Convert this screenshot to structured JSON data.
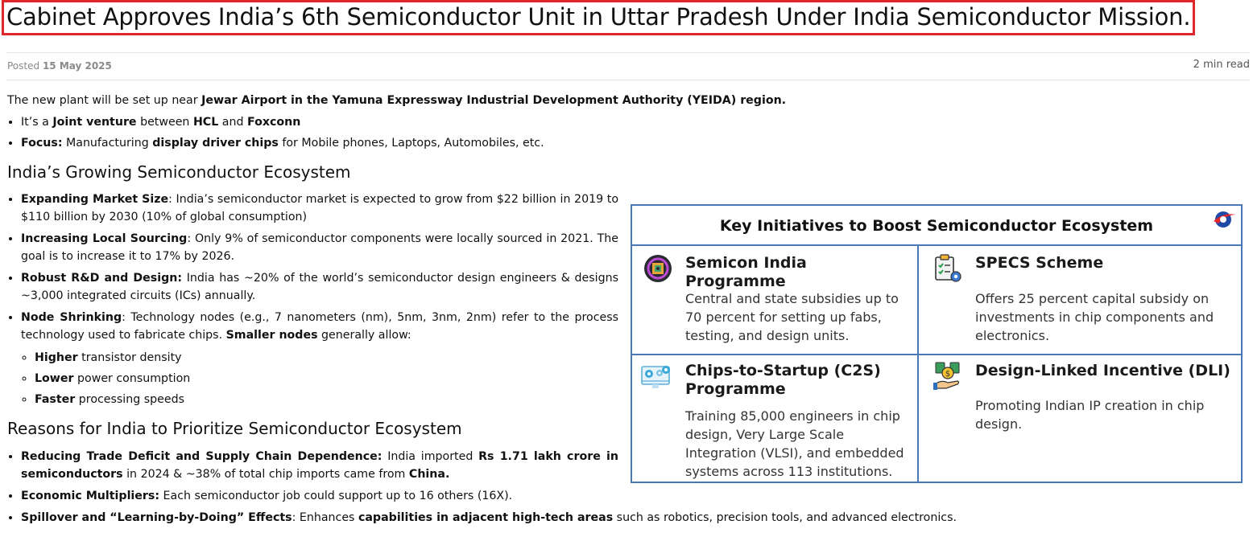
{
  "article": {
    "title": "Cabinet Approves India’s 6th Semiconductor Unit in Uttar Pradesh Under India Semiconductor Mission.",
    "posted_label": "Posted",
    "posted_date": "15 May 2025",
    "read_time": "2 min read"
  },
  "intro": {
    "prefix": "The new plant will be set up near ",
    "bold": "Jewar Airport in the Yamuna Expressway Industrial Development Authority (YEIDA) region."
  },
  "top_points": [
    {
      "t1": "It’s a ",
      "b1": "Joint venture",
      "t2": " between ",
      "b2": "HCL",
      "t3": " and ",
      "b3": "Foxconn"
    },
    {
      "b1": "Focus:",
      "t2": " Manufacturing ",
      "b2": "display driver chips",
      "t3": " for Mobile phones, Laptops, Automobiles, etc."
    }
  ],
  "eco": {
    "heading": "India’s Growing Semiconductor Ecosystem",
    "items": [
      {
        "label": "Expanding Market Size",
        "text": ": India’s semiconductor market is expected to grow from $22 billion in 2019 to $110 billion by 2030 (10% of global consumption)"
      },
      {
        "label": "Increasing Local Sourcing",
        "text": ": Only 9% of semiconductor components were locally sourced in 2021. The goal is to increase it to 17% by 2026."
      },
      {
        "label": "Robust R&D and Design:",
        "text": " India has ~20% of the world’s semiconductor design engineers & designs ~3,000 integrated circuits (ICs) annually."
      },
      {
        "label": "Node Shrinking",
        "text": ": Technology nodes (e.g., 7 nanometers (nm), 5nm, 3nm, 2nm) refer to the process technology used to fabricate chips. ",
        "label2": "Smaller nodes",
        "text2": " generally allow:"
      }
    ],
    "sub_items": [
      {
        "bold": "Higher",
        "text": " transistor density"
      },
      {
        "bold": "Lower",
        "text": " power consumption"
      },
      {
        "bold": "Faster",
        "text": " processing speeds"
      }
    ]
  },
  "reasons": {
    "heading": "Reasons for India to Prioritize Semiconductor Ecosystem",
    "items": [
      {
        "label": "Reducing Trade Deficit and Supply Chain Dependence:",
        "t1": " India imported ",
        "b1": "Rs 1.71 lakh crore in semiconductors",
        "t2": " in 2024 & ~38% of total chip imports came from ",
        "b2": "China."
      },
      {
        "label": "Economic Multipliers:",
        "t1": " Each semiconductor job could support up to 16 others (16X)."
      },
      {
        "label": "Spillover and “Learning-by-Doing” Effects",
        "t1": ": Enhances ",
        "b1": "capabilities in adjacent high-tech areas",
        "t2": " such as robotics, precision tools, and advanced electronics."
      }
    ]
  },
  "infographic": {
    "title": "Key Initiatives to Boost Semiconductor Ecosystem",
    "cells": [
      {
        "title": "Semicon India Programme",
        "desc": "Central and state subsidies up to 70 percent for setting up fabs, testing, and design units.",
        "icon": "chip-icon"
      },
      {
        "title": "SPECS Scheme",
        "desc": "Offers 25 percent capital subsidy on investments in chip components and electronics.",
        "icon": "clipboard-gear-icon"
      },
      {
        "title": "Chips-to-Startup (C2S) Programme",
        "desc": "Training 85,000 engineers in chip design, Very Large Scale Integration (VLSI), and embedded systems across 113 institutions.",
        "icon": "monitor-gears-icon"
      },
      {
        "title": "Design-Linked Incentive (DLI)",
        "desc": "Promoting Indian IP creation in chip design.",
        "icon": "money-hand-icon"
      }
    ],
    "logo": "brand-logo-icon",
    "colors": {
      "border": "#4a78b6",
      "title_border": "#e0262b"
    }
  }
}
